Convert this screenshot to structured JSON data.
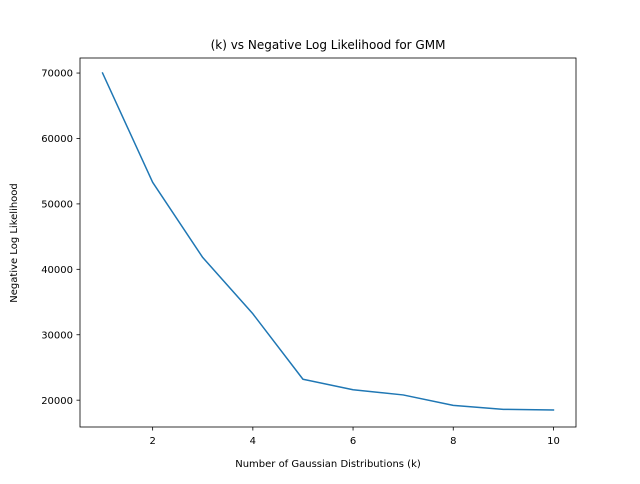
{
  "chart_data": {
    "type": "line",
    "title": "(k) vs Negative Log Likelihood for GMM",
    "xlabel": "Number of Gaussian Distributions (k)",
    "ylabel": "Negative Log Likelihood",
    "xlim": [
      0.55,
      10.45
    ],
    "ylim": [
      15900,
      72300
    ],
    "xticks": [
      2,
      4,
      6,
      8,
      10
    ],
    "yticks": [
      20000,
      30000,
      40000,
      50000,
      60000,
      70000
    ],
    "grid": false,
    "series": [
      {
        "color": "#1f77b4",
        "x": [
          1,
          2,
          3,
          4,
          5,
          6,
          7,
          8,
          9,
          10
        ],
        "y": [
          70000,
          53300,
          41800,
          33200,
          23200,
          21600,
          20800,
          19200,
          18600,
          18500
        ]
      }
    ]
  }
}
